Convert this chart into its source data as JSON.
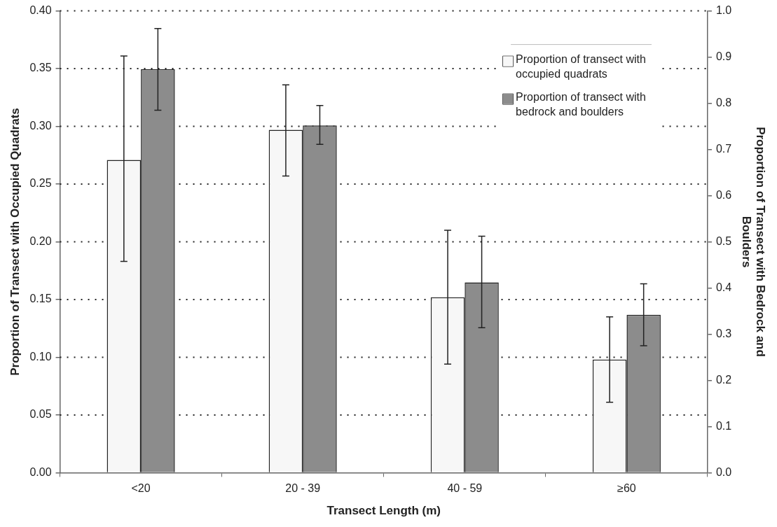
{
  "chart_data": {
    "type": "bar",
    "xlabel": "Transect Length (m)",
    "ylabel": "Proportion of Transect with Occupied Quadrats",
    "y2label": "Proportion of Transect with Bedrock and Boulders",
    "categories": [
      "<20",
      "20 - 39",
      "40 - 59",
      "≥60"
    ],
    "series": [
      {
        "name": "Proportion of transect with occupied quadrats",
        "color": "#f7f7f7",
        "values": [
          0.271,
          0.297,
          0.152,
          0.098
        ],
        "errors": [
          [
            0.183,
            0.361
          ],
          [
            0.257,
            0.336
          ],
          [
            0.094,
            0.21
          ],
          [
            0.061,
            0.135
          ]
        ]
      },
      {
        "name": "Proportion of transect with bedrock and boulders",
        "color": "#8c8c8c",
        "axis": "y2",
        "values": [
          0.874,
          0.752,
          0.412,
          0.342
        ],
        "errors": [
          [
            0.785,
            0.962
          ],
          [
            0.711,
            0.795
          ],
          [
            0.314,
            0.512
          ],
          [
            0.275,
            0.409
          ]
        ]
      }
    ],
    "ylim": [
      0,
      0.4
    ],
    "yticks": [
      {
        "value": 0,
        "label": "0.00"
      },
      {
        "value": 0.05,
        "label": "0.05"
      },
      {
        "value": 0.1,
        "label": "0.10"
      },
      {
        "value": 0.15,
        "label": "0.15"
      },
      {
        "value": 0.2,
        "label": "0.20"
      },
      {
        "value": 0.25,
        "label": "0.25"
      },
      {
        "value": 0.3,
        "label": "0.30"
      },
      {
        "value": 0.35,
        "label": "0.35"
      },
      {
        "value": 0.4,
        "label": "0.40"
      }
    ],
    "y2lim": [
      0,
      1
    ],
    "y2ticks": [
      {
        "value": 0,
        "label": "0.0"
      },
      0.1,
      0.2,
      0.3,
      0.4,
      0.5,
      0.6,
      0.7,
      0.8,
      0.9,
      {
        "value": 1,
        "label": "1.0"
      }
    ],
    "grid": "y",
    "legend": "top right"
  }
}
